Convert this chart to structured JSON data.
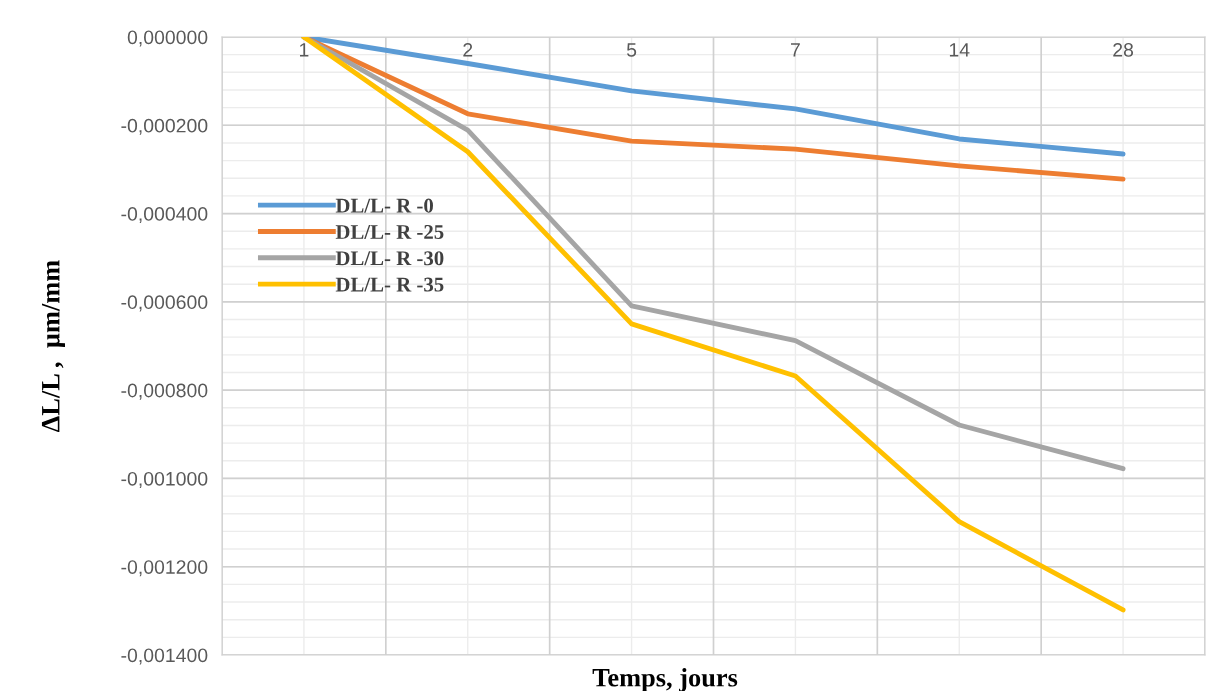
{
  "chart_data": {
    "type": "line",
    "xlabel": "Temps, jours",
    "ylabel": "ΔL/L ,  µm/mm",
    "categories": [
      "1",
      "2",
      "5",
      "7",
      "14",
      "28"
    ],
    "series": [
      {
        "name": "DL/L- R -0",
        "color": "#5b9bd5",
        "values": [
          0,
          -6e-05,
          -0.000122,
          -0.000163,
          -0.000231,
          -0.000265
        ]
      },
      {
        "name": "DL/L- R -25",
        "color": "#ed7d31",
        "values": [
          0,
          -0.000174,
          -0.000236,
          -0.000254,
          -0.000292,
          -0.000322
        ]
      },
      {
        "name": "DL/L- R -30",
        "color": "#a5a5a5",
        "values": [
          0,
          -0.000211,
          -0.000609,
          -0.000688,
          -0.000879,
          -0.000978
        ]
      },
      {
        "name": "DL/L- R -35",
        "color": "#ffc000",
        "values": [
          0,
          -0.00026,
          -0.00065,
          -0.000768,
          -0.001098,
          -0.001298
        ]
      }
    ],
    "ylim": [
      -0.0014,
      0
    ],
    "yticks": [
      {
        "value": 0,
        "label": "0,000000"
      },
      {
        "value": -0.0002,
        "label": "-0,000200"
      },
      {
        "value": -0.0004,
        "label": "-0,000400"
      },
      {
        "value": -0.0006,
        "label": "-0,000600"
      },
      {
        "value": -0.0008,
        "label": "-0,000800"
      },
      {
        "value": -0.001,
        "label": "-0,001000"
      },
      {
        "value": -0.0012,
        "label": "-0,001200"
      },
      {
        "value": -0.0014,
        "label": "-0,001400"
      }
    ],
    "grid": true,
    "legend": "top left",
    "marker": "none",
    "line_style": "solid"
  }
}
